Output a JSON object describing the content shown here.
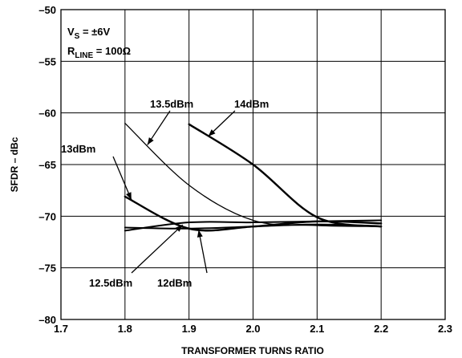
{
  "chart_data": {
    "type": "line",
    "xlabel": "TRANSFORMER TURNS RATIO",
    "ylabel": "SFDR – dBc",
    "xlim": [
      1.7,
      2.3
    ],
    "ylim": [
      -80,
      -50
    ],
    "xticks": [
      "1.7",
      "1.8",
      "1.9",
      "2.0",
      "2.1",
      "2.2",
      "2.3"
    ],
    "yticks": [
      "–50",
      "–55",
      "–60",
      "–65",
      "–70",
      "–75",
      "–80"
    ],
    "grid": true,
    "conditions": {
      "vs_main": "V",
      "vs_sub": "S",
      "vs_rest": " = ±6V",
      "rl_main": "R",
      "rl_sub": "LINE",
      "rl_rest": " = 100Ω"
    },
    "series": [
      {
        "name": "14dBm",
        "x": [
          1.9,
          2.0,
          2.1,
          2.2
        ],
        "y": [
          -61.1,
          -65.0,
          -70.1,
          -71.0
        ]
      },
      {
        "name": "13.5dBm",
        "x": [
          1.8,
          1.9,
          2.0,
          2.1,
          2.2
        ],
        "y": [
          -61.0,
          -67.0,
          -70.4,
          -70.9,
          -71.0
        ]
      },
      {
        "name": "13dBm",
        "x": [
          1.8,
          1.9,
          2.0,
          2.1,
          2.2
        ],
        "y": [
          -68.1,
          -71.2,
          -71.0,
          -70.5,
          -70.7
        ]
      },
      {
        "name": "12.5dBm",
        "x": [
          1.8,
          1.9,
          2.0,
          2.1,
          2.2
        ],
        "y": [
          -71.4,
          -70.6,
          -70.6,
          -70.5,
          -70.4
        ]
      },
      {
        "name": "12dBm",
        "x": [
          1.8,
          1.9,
          2.0,
          2.1,
          2.2
        ],
        "y": [
          -71.1,
          -71.2,
          -71.0,
          -70.8,
          -71.0
        ]
      }
    ],
    "annotations": [
      {
        "text": "14dBm",
        "series": "14dBm"
      },
      {
        "text": "13.5dBm",
        "series": "13.5dBm"
      },
      {
        "text": "13dBm",
        "series": "13dBm"
      },
      {
        "text": "12.5dBm",
        "series": "12.5dBm"
      },
      {
        "text": "12dBm",
        "series": "12dBm"
      }
    ]
  }
}
